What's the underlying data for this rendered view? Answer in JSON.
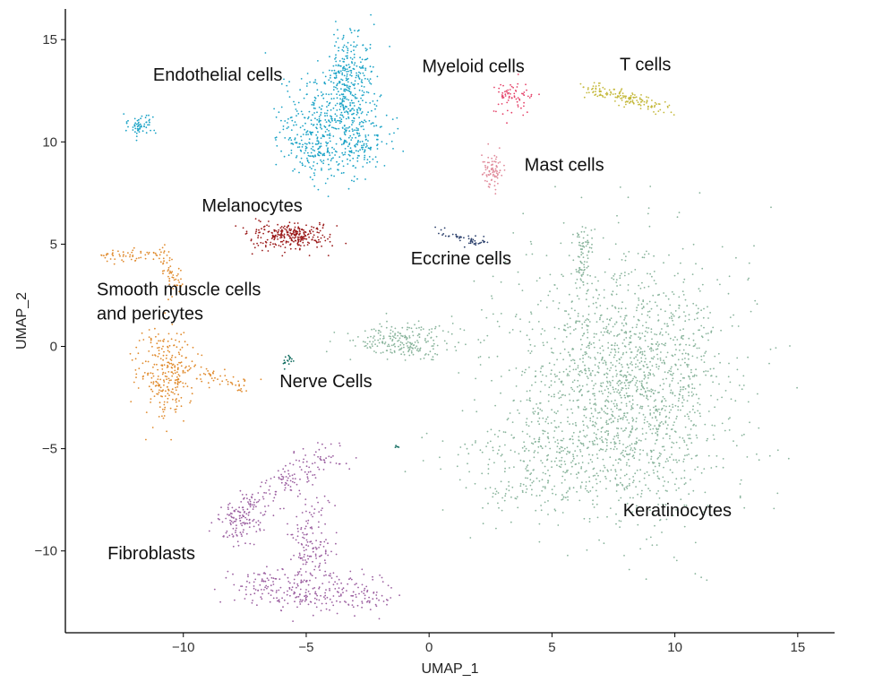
{
  "chart_data": {
    "type": "scatter",
    "title": "",
    "xlabel": "UMAP_1",
    "ylabel": "UMAP_2",
    "xlim": [
      -14.8,
      16.5
    ],
    "ylim": [
      -14,
      16.5
    ],
    "x_ticks": [
      -10,
      -5,
      0,
      5,
      10,
      15
    ],
    "y_ticks": [
      -10,
      -5,
      0,
      5,
      10,
      15
    ],
    "x_tick_labels": [
      "−10",
      "−5",
      "0",
      "5",
      "10",
      "15"
    ],
    "y_tick_labels": [
      "−10",
      "−5",
      "0",
      "5",
      "10",
      "15"
    ],
    "grid": false,
    "legend": "none",
    "clusters": [
      {
        "name": "Endothelial cells",
        "color": "#1BA3C6",
        "label_pos": [
          -8.6,
          13.0
        ],
        "regions": [
          {
            "center": [
              -3.2,
              13.3
            ],
            "sd": [
              0.45,
              1.1
            ],
            "n": 260
          },
          {
            "center": [
              -4.0,
              11.5
            ],
            "sd": [
              0.9,
              0.9
            ],
            "n": 220
          },
          {
            "center": [
              -4.6,
              9.8
            ],
            "sd": [
              0.7,
              0.9
            ],
            "n": 220
          },
          {
            "center": [
              -2.8,
              10.0
            ],
            "sd": [
              0.6,
              0.8
            ],
            "n": 150
          },
          {
            "center": [
              -11.8,
              10.8
            ],
            "sd": [
              0.28,
              0.25
            ],
            "n": 60
          }
        ]
      },
      {
        "name": "Myeloid cells",
        "color": "#E5446B",
        "label_pos": [
          1.8,
          13.4
        ],
        "regions": [
          {
            "center": [
              3.4,
              12.2
            ],
            "sd": [
              0.32,
              0.45
            ],
            "n": 70
          }
        ]
      },
      {
        "name": "T cells",
        "color": "#C4B83A",
        "label_pos": [
          8.8,
          13.5
        ],
        "regions": [
          {
            "from": [
              6.3,
              12.7
            ],
            "to": [
              9.8,
              11.6
            ],
            "width": 0.18,
            "n": 150
          }
        ]
      },
      {
        "name": "Mast cells",
        "color": "#E08A9A",
        "label_pos": [
          5.5,
          8.6
        ],
        "regions": [
          {
            "center": [
              2.6,
              8.7
            ],
            "sd": [
              0.22,
              0.5
            ],
            "n": 80
          }
        ]
      },
      {
        "name": "Melanocytes",
        "color": "#9B1B1B",
        "label_pos": [
          -7.2,
          6.6
        ],
        "regions": [
          {
            "center": [
              -5.6,
              5.4
            ],
            "sd": [
              0.75,
              0.35
            ],
            "n": 280
          }
        ]
      },
      {
        "name": "Eccrine cells",
        "color": "#2A3F6B",
        "label_pos": [
          1.3,
          4.0
        ],
        "regions": [
          {
            "from": [
              0.3,
              5.7
            ],
            "to": [
              2.3,
              5.0
            ],
            "width": 0.12,
            "n": 50
          }
        ]
      },
      {
        "name": "Smooth muscle cells\nand pericytes",
        "color": "#E08A2C",
        "label_pos": [
          -10.9,
          2.5
        ],
        "regions": [
          {
            "from": [
              -13.2,
              4.3
            ],
            "to": [
              -10.8,
              4.6
            ],
            "width": 0.15,
            "n": 60
          },
          {
            "from": [
              -10.8,
              4.6
            ],
            "to": [
              -10.3,
              2.8
            ],
            "width": 0.2,
            "n": 50
          },
          {
            "center": [
              -10.7,
              -1.3
            ],
            "sd": [
              0.55,
              1.1
            ],
            "n": 260
          },
          {
            "from": [
              -10.0,
              -1.2
            ],
            "to": [
              -7.2,
              -1.9
            ],
            "width": 0.25,
            "n": 60
          }
        ]
      },
      {
        "name": "Nerve Cells",
        "color": "#0E6B5E",
        "label_pos": [
          -4.2,
          -2.0
        ],
        "regions": [
          {
            "center": [
              -5.8,
              -0.75
            ],
            "sd": [
              0.12,
              0.15
            ],
            "n": 18
          },
          {
            "center": [
              -1.3,
              -4.9
            ],
            "sd": [
              0.05,
              0.1
            ],
            "n": 5
          }
        ]
      },
      {
        "name": "Fibroblasts",
        "color": "#9B5FA0",
        "label_pos": [
          -11.3,
          -10.4
        ],
        "regions": [
          {
            "from": [
              -7.8,
              -8.2
            ],
            "to": [
              -4.0,
              -5.2
            ],
            "width": 0.4,
            "n": 160
          },
          {
            "center": [
              -7.8,
              -8.5
            ],
            "sd": [
              0.45,
              0.5
            ],
            "n": 110
          },
          {
            "center": [
              -4.8,
              -9.7
            ],
            "sd": [
              0.5,
              1.2
            ],
            "n": 160
          },
          {
            "from": [
              -7.6,
              -11.8
            ],
            "to": [
              -2.0,
              -12.1
            ],
            "width": 0.5,
            "n": 260
          }
        ]
      },
      {
        "name": "Keratinocytes",
        "color": "#89B49C",
        "label_pos": [
          10.1,
          -8.3
        ],
        "regions": [
          {
            "center": [
              -1.0,
              0.2
            ],
            "sd": [
              1.0,
              0.5
            ],
            "n": 220
          },
          {
            "center": [
              7.8,
              -1.3
            ],
            "sd": [
              2.5,
              3.0
            ],
            "n": 1200
          },
          {
            "center": [
              8.8,
              -3.0
            ],
            "sd": [
              1.3,
              3.3
            ],
            "n": 500
          },
          {
            "center": [
              5.0,
              -5.6
            ],
            "sd": [
              2.0,
              1.2
            ],
            "n": 350
          },
          {
            "from": [
              6.3,
              6.0
            ],
            "to": [
              6.2,
              3.0
            ],
            "width": 0.18,
            "n": 80
          }
        ]
      }
    ]
  }
}
